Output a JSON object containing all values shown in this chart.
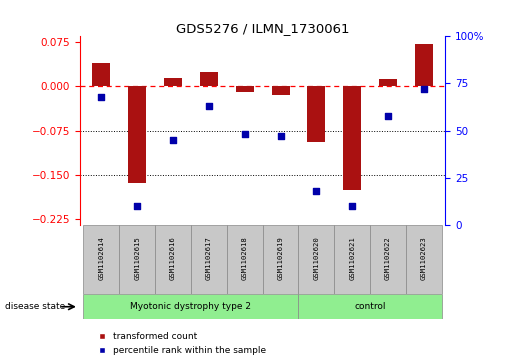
{
  "title": "GDS5276 / ILMN_1730061",
  "samples": [
    "GSM1102614",
    "GSM1102615",
    "GSM1102616",
    "GSM1102617",
    "GSM1102618",
    "GSM1102619",
    "GSM1102620",
    "GSM1102621",
    "GSM1102622",
    "GSM1102623"
  ],
  "red_values": [
    0.04,
    -0.163,
    0.015,
    0.025,
    -0.01,
    -0.015,
    -0.095,
    -0.175,
    0.012,
    0.072
  ],
  "blue_values": [
    68,
    10,
    45,
    63,
    48,
    47,
    18,
    10,
    58,
    72
  ],
  "ylim_left": [
    -0.235,
    0.085
  ],
  "ylim_right": [
    0,
    100
  ],
  "yticks_left": [
    0.075,
    0.0,
    -0.075,
    -0.15,
    -0.225
  ],
  "yticks_right": [
    100,
    75,
    50,
    25,
    0
  ],
  "group1_label": "Myotonic dystrophy type 2",
  "group1_count": 6,
  "group2_label": "control",
  "group2_count": 4,
  "disease_state_label": "disease state",
  "legend_red": "transformed count",
  "legend_blue": "percentile rank within the sample",
  "red_color": "#AA1111",
  "blue_color": "#0000AA",
  "group_bg": "#90EE90",
  "sample_bg": "#C8C8C8",
  "bar_width": 0.5
}
